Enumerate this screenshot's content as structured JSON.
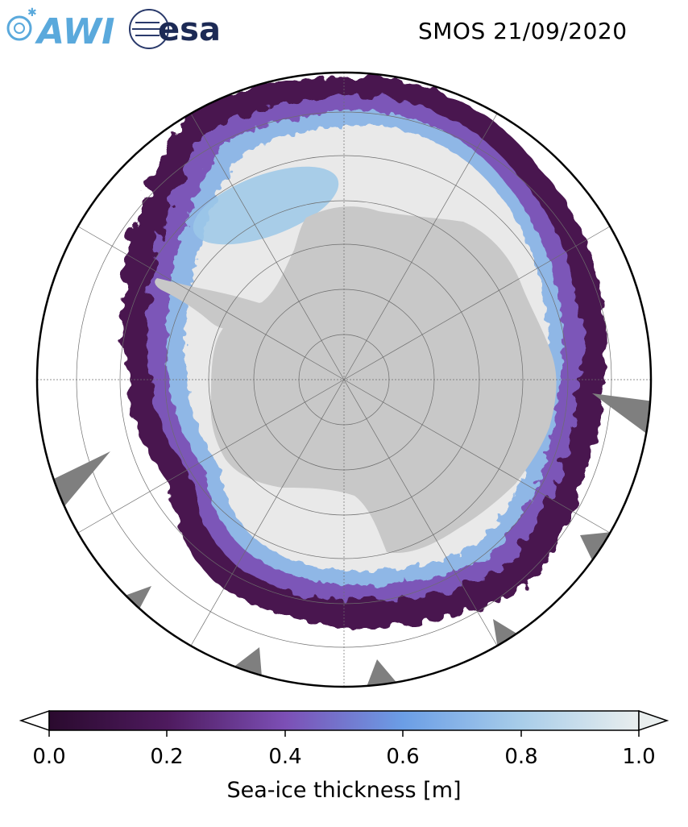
{
  "header": {
    "title": "SMOS 21/09/2020",
    "logo_left": "AWI",
    "logo_right": "esa"
  },
  "colorbar": {
    "label": "Sea-ice thickness [m]",
    "ticks": [
      "0.0",
      "0.2",
      "0.4",
      "0.6",
      "0.8",
      "1.0"
    ],
    "range": [
      0.0,
      1.0
    ],
    "colors": [
      "#2a0a2e",
      "#4e1a5e",
      "#7c4fb5",
      "#6b9ee6",
      "#a8cde9",
      "#e9eeee"
    ]
  },
  "map": {
    "projection": "south polar stereographic",
    "land_color": "#c8c8c8",
    "thick_ice_color": "#e9e9e9",
    "no_data_color": "#7f7f7f",
    "graticule": true
  }
}
